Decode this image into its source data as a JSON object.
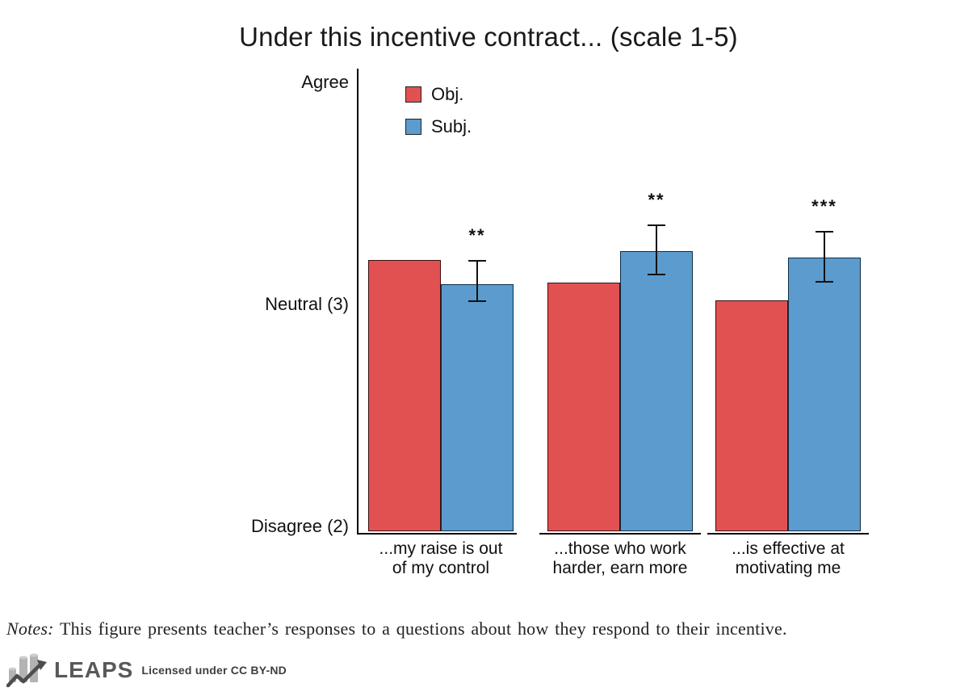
{
  "title": "Under this incentive contract... (scale 1-5)",
  "chart_data": {
    "type": "bar",
    "title": "Under this incentive contract... (scale 1-5)",
    "categories": [
      {
        "label": "...my raise is out of my control",
        "lines": [
          "...my raise is out",
          "of my control"
        ]
      },
      {
        "label": "...those who work harder, earn more",
        "lines": [
          "...those who work",
          "harder, earn more"
        ]
      },
      {
        "label": "...is effective at motivating me",
        "lines": [
          "...is effective at",
          "motivating me"
        ]
      }
    ],
    "series": [
      {
        "name": "Obj.",
        "color": "#e25151",
        "border": "#3a0f0f",
        "values": [
          3.2,
          3.1,
          3.02
        ]
      },
      {
        "name": "Subj.",
        "color": "#5b9bcd",
        "border": "#122c44",
        "values": [
          3.09,
          3.24,
          3.21
        ],
        "error_bars": [
          {
            "low": 3.01,
            "high": 3.2
          },
          {
            "low": 3.13,
            "high": 3.36
          },
          {
            "low": 3.1,
            "high": 3.33
          }
        ],
        "significance": [
          "**",
          "**",
          "***"
        ]
      }
    ],
    "y_ticks": [
      {
        "value": 4,
        "label": "Agree"
      },
      {
        "value": 3,
        "label": "Neutral (3)"
      },
      {
        "value": 2,
        "label": "Disagree (2)"
      }
    ],
    "ylim": [
      2,
      4.1
    ],
    "grid": false,
    "legend_position": "top-left-inside"
  },
  "notes": {
    "prefix": "Notes:",
    "text": "This figure presents teacher’s responses to a questions about how they respond to their incentive."
  },
  "footer": {
    "brand": "LEAPS",
    "license": "Licensed under CC BY-ND",
    "brand_color": "#595959"
  }
}
